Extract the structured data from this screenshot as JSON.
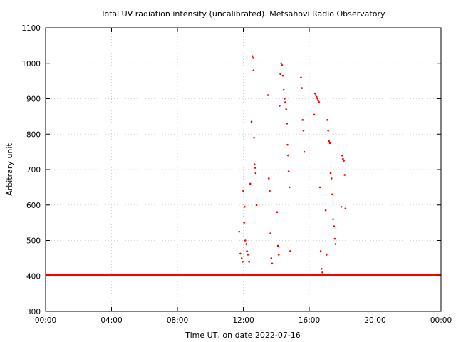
{
  "chart_data": {
    "type": "scatter",
    "title": "Total UV radiation intensity (uncalibrated). Metsähovi Radio Observatory",
    "xlabel": "Time UT, on date 2022-07-16",
    "ylabel": "Arbitrary unit",
    "xlim": [
      0,
      24
    ],
    "ylim": [
      300,
      1100
    ],
    "xticks": [
      0,
      4,
      8,
      12,
      16,
      20,
      24
    ],
    "xtick_labels": [
      "00:00",
      "04:00",
      "08:00",
      "12:00",
      "16:00",
      "20:00",
      "00:00"
    ],
    "yticks": [
      300,
      400,
      500,
      600,
      700,
      800,
      900,
      1000,
      1100
    ],
    "ytick_labels": [
      "300",
      "400",
      "500",
      "600",
      "700",
      "800",
      "900",
      "1000",
      "1100"
    ],
    "grid": true,
    "color": "#ff0000",
    "baseline": {
      "y": 402,
      "x_start": 0,
      "x_end": 24,
      "note": "continuous band of points at baseline level across the full day"
    },
    "series": [
      {
        "x": [
          4.7,
          4.85,
          5.0,
          5.1,
          5.25,
          5.35,
          9.6,
          9.7,
          11.75,
          11.82,
          11.9,
          11.95,
          12.0,
          12.05,
          12.08,
          12.12,
          12.18,
          12.22,
          12.28,
          12.35,
          12.42,
          12.5,
          12.55,
          12.6,
          12.62,
          12.65,
          12.68,
          12.72,
          12.75,
          12.8,
          13.5,
          13.55,
          13.6,
          13.65,
          13.7,
          13.75,
          14.05,
          14.1,
          14.15,
          14.2,
          14.25,
          14.3,
          14.35,
          14.4,
          14.45,
          14.5,
          14.55,
          14.6,
          14.65,
          14.68,
          14.72,
          14.75,
          14.8,
          14.85,
          15.5,
          15.55,
          15.6,
          15.65,
          15.7,
          16.3,
          16.35,
          16.4,
          16.45,
          16.5,
          16.55,
          16.6,
          16.65,
          16.7,
          16.75,
          16.8,
          17.0,
          17.05,
          17.1,
          17.15,
          17.2,
          17.25,
          17.3,
          17.35,
          17.4,
          17.45,
          17.5,
          17.55,
          17.6,
          17.95,
          18.0,
          18.05,
          18.1,
          18.15,
          18.2
        ],
        "y": [
          403,
          404,
          402,
          403,
          404,
          402,
          404,
          403,
          525,
          463,
          450,
          440,
          640,
          550,
          595,
          500,
          490,
          470,
          460,
          440,
          660,
          835,
          1020,
          1015,
          980,
          790,
          715,
          705,
          690,
          600,
          910,
          675,
          640,
          520,
          450,
          435,
          580,
          485,
          460,
          880,
          970,
          1000,
          995,
          965,
          925,
          900,
          890,
          870,
          830,
          770,
          740,
          695,
          650,
          470,
          960,
          930,
          840,
          810,
          750,
          855,
          915,
          910,
          905,
          900,
          895,
          890,
          650,
          470,
          420,
          410,
          585,
          460,
          840,
          810,
          780,
          775,
          690,
          675,
          630,
          560,
          540,
          505,
          490,
          595,
          740,
          730,
          725,
          685,
          590
        ]
      }
    ]
  }
}
